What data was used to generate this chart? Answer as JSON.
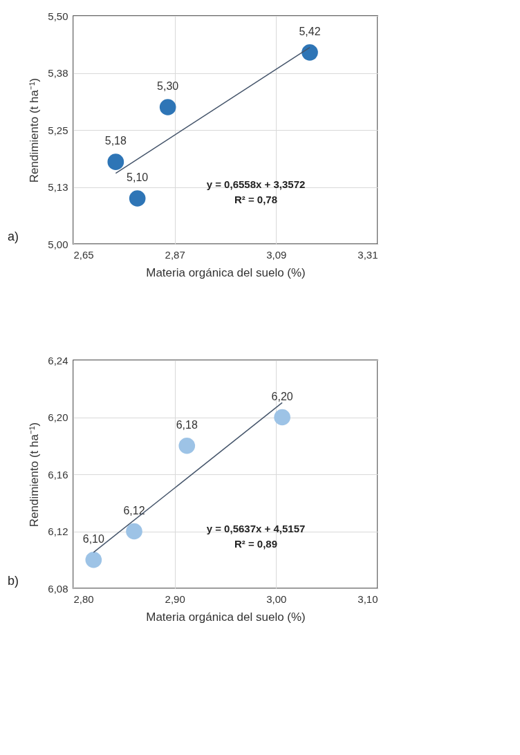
{
  "chart_data": [
    {
      "type": "scatter",
      "xlabel": "Materia orgánica del suelo (%)",
      "ylabel": "Rendimiento (t ha⁻¹)",
      "xlim": [
        2.65,
        3.31
      ],
      "xticks": [
        {
          "value": 2.65,
          "label": "2,65"
        },
        {
          "value": 2.87,
          "label": "2,87"
        },
        {
          "value": 3.09,
          "label": "3,09"
        },
        {
          "value": 3.31,
          "label": "3,31"
        }
      ],
      "ylim": [
        5.0,
        5.5
      ],
      "yticks": [
        {
          "value": 5.0,
          "label": "5,00"
        },
        {
          "value": 5.125,
          "label": "5,13"
        },
        {
          "value": 5.25,
          "label": "5,25"
        },
        {
          "value": 5.375,
          "label": "5,38"
        },
        {
          "value": 5.5,
          "label": "5,50"
        }
      ],
      "grid": true,
      "annotations": [
        "a)",
        "y = 0,6558x + 3,3572",
        "R² = 0,78"
      ],
      "series": [
        {
          "marker": "circle",
          "color": "#2e75b6",
          "x": [
            2.742,
            2.789,
            2.855,
            3.163
          ],
          "values": [
            5.18,
            5.1,
            5.3,
            5.42
          ],
          "value_labels": [
            "5,18",
            "5,10",
            "5,30",
            "5,42"
          ]
        },
        {
          "type": "line",
          "color": "#44546a",
          "x": [
            2.742,
            3.163
          ],
          "values": [
            5.155,
            5.431
          ]
        }
      ]
    },
    {
      "type": "scatter",
      "xlabel": "Materia orgánica del suelo (%)",
      "ylabel": "Rendimiento (t ha⁻¹)",
      "xlim": [
        2.8,
        3.1
      ],
      "xticks": [
        {
          "value": 2.8,
          "label": "2,80"
        },
        {
          "value": 2.9,
          "label": "2,90"
        },
        {
          "value": 3.0,
          "label": "3,00"
        },
        {
          "value": 3.1,
          "label": "3,10"
        }
      ],
      "ylim": [
        6.08,
        6.24
      ],
      "yticks": [
        {
          "value": 6.08,
          "label": "6,08"
        },
        {
          "value": 6.12,
          "label": "6,12"
        },
        {
          "value": 6.16,
          "label": "6,16"
        },
        {
          "value": 6.2,
          "label": "6,20"
        },
        {
          "value": 6.24,
          "label": "6,24"
        }
      ],
      "grid": true,
      "annotations": [
        "b)",
        "y = 0,5637x + 4,5157",
        "R² = 0,89"
      ],
      "series": [
        {
          "marker": "circle",
          "color": "#9dc3e6",
          "x": [
            2.82,
            2.86,
            2.912,
            3.006
          ],
          "values": [
            6.1,
            6.12,
            6.18,
            6.2
          ],
          "value_labels": [
            "6,10",
            "6,12",
            "6,18",
            "6,20"
          ]
        },
        {
          "type": "line",
          "color": "#44546a",
          "x": [
            2.82,
            3.006
          ],
          "values": [
            6.1053,
            6.2102
          ]
        }
      ]
    }
  ]
}
